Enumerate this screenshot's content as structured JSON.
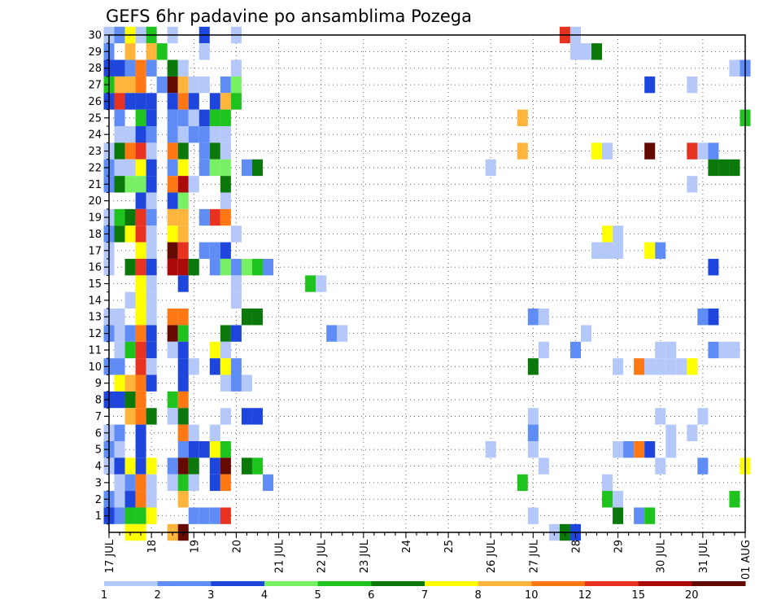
{
  "chart_data": {
    "type": "heatmap",
    "title": "GEFS 6hr padavine po ansamblima Pozega",
    "xlabel": "",
    "ylabel": "",
    "x_ticks": [
      "17 JUL",
      "18",
      "19",
      "20",
      "21 JUL",
      "22 JUL",
      "23 JUL",
      "24",
      "25",
      "26 JUL",
      "27 JUL",
      "28",
      "29",
      "30 JUL",
      "31 JUL",
      "01 AUG"
    ],
    "y_ticks": [
      1,
      2,
      3,
      4,
      5,
      6,
      7,
      8,
      9,
      10,
      11,
      12,
      13,
      14,
      15,
      16,
      17,
      18,
      19,
      20,
      21,
      22,
      23,
      24,
      25,
      26,
      27,
      28,
      29,
      30
    ],
    "y_range": [
      0,
      30
    ],
    "time_steps_per_day": 4,
    "n_time_steps": 61,
    "grid": "dotted",
    "legend": {
      "placement": "bottom",
      "labels": [
        "1",
        "2",
        "3",
        "4",
        "5",
        "6",
        "7",
        "8",
        "10",
        "12",
        "15",
        "20"
      ],
      "colors": [
        "#b4c8fa",
        "#5f8cf5",
        "#1e46dc",
        "#78f064",
        "#1ec31e",
        "#0a780a",
        "#ffff00",
        "#ffb43c",
        "#ff7814",
        "#e6321e",
        "#aa0a0a",
        "#640a00"
      ]
    },
    "cells_note": "each cell is [member_row, time_step, color_class_index]; color_class_index refers to legend.colors; time_step 0 = 17 JUL 00z",
    "cells": [
      [
        30,
        0,
        0
      ],
      [
        30,
        1,
        1
      ],
      [
        30,
        2,
        6
      ],
      [
        30,
        3,
        0
      ],
      [
        30,
        4,
        4
      ],
      [
        30,
        6,
        0
      ],
      [
        30,
        9,
        2
      ],
      [
        30,
        12,
        0
      ],
      [
        30,
        43,
        9
      ],
      [
        30,
        44,
        0
      ],
      [
        29,
        0,
        1
      ],
      [
        29,
        2,
        7
      ],
      [
        29,
        4,
        7
      ],
      [
        29,
        5,
        4
      ],
      [
        29,
        9,
        0
      ],
      [
        29,
        44,
        0
      ],
      [
        29,
        45,
        0
      ],
      [
        29,
        46,
        5
      ],
      [
        28,
        0,
        2
      ],
      [
        28,
        1,
        2
      ],
      [
        28,
        2,
        1
      ],
      [
        28,
        3,
        8
      ],
      [
        28,
        4,
        1
      ],
      [
        28,
        6,
        5
      ],
      [
        28,
        7,
        0
      ],
      [
        28,
        12,
        0
      ],
      [
        28,
        59,
        0
      ],
      [
        28,
        60,
        1
      ],
      [
        27,
        0,
        4
      ],
      [
        27,
        1,
        7
      ],
      [
        27,
        2,
        7
      ],
      [
        27,
        3,
        8
      ],
      [
        27,
        5,
        1
      ],
      [
        27,
        6,
        11
      ],
      [
        27,
        7,
        7
      ],
      [
        27,
        8,
        0
      ],
      [
        27,
        9,
        0
      ],
      [
        27,
        11,
        1
      ],
      [
        27,
        12,
        3
      ],
      [
        27,
        51,
        2
      ],
      [
        27,
        55,
        0
      ],
      [
        26,
        0,
        2
      ],
      [
        26,
        1,
        9
      ],
      [
        26,
        2,
        2
      ],
      [
        26,
        3,
        2
      ],
      [
        26,
        4,
        2
      ],
      [
        26,
        6,
        2
      ],
      [
        26,
        7,
        8
      ],
      [
        26,
        8,
        2
      ],
      [
        26,
        10,
        2
      ],
      [
        26,
        11,
        7
      ],
      [
        26,
        12,
        4
      ],
      [
        25,
        1,
        1
      ],
      [
        25,
        3,
        4
      ],
      [
        25,
        4,
        2
      ],
      [
        25,
        6,
        1
      ],
      [
        25,
        7,
        1
      ],
      [
        25,
        8,
        0
      ],
      [
        25,
        9,
        2
      ],
      [
        25,
        10,
        4
      ],
      [
        25,
        11,
        4
      ],
      [
        25,
        39,
        7
      ],
      [
        25,
        60,
        4
      ],
      [
        24,
        1,
        0
      ],
      [
        24,
        2,
        0
      ],
      [
        24,
        3,
        2
      ],
      [
        24,
        4,
        1
      ],
      [
        24,
        6,
        1
      ],
      [
        24,
        7,
        0
      ],
      [
        24,
        8,
        1
      ],
      [
        24,
        9,
        1
      ],
      [
        24,
        10,
        0
      ],
      [
        24,
        11,
        0
      ],
      [
        23,
        0,
        0
      ],
      [
        23,
        1,
        5
      ],
      [
        23,
        2,
        8
      ],
      [
        23,
        3,
        9
      ],
      [
        23,
        4,
        0
      ],
      [
        23,
        6,
        8
      ],
      [
        23,
        7,
        5
      ],
      [
        23,
        9,
        1
      ],
      [
        23,
        10,
        5
      ],
      [
        23,
        11,
        0
      ],
      [
        23,
        39,
        7
      ],
      [
        23,
        46,
        6
      ],
      [
        23,
        47,
        0
      ],
      [
        23,
        51,
        11
      ],
      [
        23,
        55,
        9
      ],
      [
        23,
        56,
        0
      ],
      [
        23,
        57,
        1
      ],
      [
        22,
        0,
        1
      ],
      [
        22,
        1,
        0
      ],
      [
        22,
        2,
        0
      ],
      [
        22,
        3,
        6
      ],
      [
        22,
        4,
        2
      ],
      [
        22,
        6,
        1
      ],
      [
        22,
        7,
        6
      ],
      [
        22,
        9,
        1
      ],
      [
        22,
        10,
        3
      ],
      [
        22,
        11,
        3
      ],
      [
        22,
        13,
        1
      ],
      [
        22,
        14,
        5
      ],
      [
        22,
        36,
        0
      ],
      [
        22,
        57,
        5
      ],
      [
        22,
        58,
        5
      ],
      [
        22,
        59,
        5
      ],
      [
        21,
        0,
        1
      ],
      [
        21,
        1,
        5
      ],
      [
        21,
        2,
        3
      ],
      [
        21,
        3,
        3
      ],
      [
        21,
        4,
        2
      ],
      [
        21,
        6,
        8
      ],
      [
        21,
        7,
        10
      ],
      [
        21,
        8,
        0
      ],
      [
        21,
        11,
        5
      ],
      [
        21,
        55,
        0
      ],
      [
        20,
        3,
        2
      ],
      [
        20,
        4,
        0
      ],
      [
        20,
        6,
        2
      ],
      [
        20,
        7,
        3
      ],
      [
        20,
        11,
        0
      ],
      [
        19,
        0,
        0
      ],
      [
        19,
        1,
        4
      ],
      [
        19,
        2,
        5
      ],
      [
        19,
        3,
        9
      ],
      [
        19,
        4,
        1
      ],
      [
        19,
        6,
        7
      ],
      [
        19,
        7,
        7
      ],
      [
        19,
        9,
        1
      ],
      [
        19,
        10,
        9
      ],
      [
        19,
        11,
        8
      ],
      [
        18,
        0,
        1
      ],
      [
        18,
        1,
        5
      ],
      [
        18,
        2,
        6
      ],
      [
        18,
        3,
        9
      ],
      [
        18,
        4,
        0
      ],
      [
        18,
        6,
        6
      ],
      [
        18,
        7,
        7
      ],
      [
        18,
        12,
        0
      ],
      [
        18,
        47,
        6
      ],
      [
        18,
        48,
        0
      ],
      [
        17,
        0,
        0
      ],
      [
        17,
        3,
        6
      ],
      [
        17,
        4,
        0
      ],
      [
        17,
        6,
        11
      ],
      [
        17,
        7,
        9
      ],
      [
        17,
        9,
        1
      ],
      [
        17,
        10,
        1
      ],
      [
        17,
        11,
        2
      ],
      [
        17,
        46,
        0
      ],
      [
        17,
        47,
        0
      ],
      [
        17,
        48,
        0
      ],
      [
        17,
        51,
        6
      ],
      [
        17,
        52,
        1
      ],
      [
        16,
        0,
        0
      ],
      [
        16,
        2,
        5
      ],
      [
        16,
        3,
        9
      ],
      [
        16,
        4,
        2
      ],
      [
        16,
        6,
        10
      ],
      [
        16,
        7,
        10
      ],
      [
        16,
        8,
        5
      ],
      [
        16,
        10,
        1
      ],
      [
        16,
        11,
        3
      ],
      [
        16,
        12,
        1
      ],
      [
        16,
        13,
        3
      ],
      [
        16,
        14,
        4
      ],
      [
        16,
        15,
        1
      ],
      [
        16,
        57,
        2
      ],
      [
        15,
        3,
        6
      ],
      [
        15,
        4,
        0
      ],
      [
        15,
        7,
        2
      ],
      [
        15,
        12,
        0
      ],
      [
        15,
        19,
        4
      ],
      [
        15,
        20,
        0
      ],
      [
        14,
        2,
        0
      ],
      [
        14,
        3,
        6
      ],
      [
        14,
        4,
        0
      ],
      [
        14,
        12,
        0
      ],
      [
        13,
        0,
        0
      ],
      [
        13,
        1,
        0
      ],
      [
        13,
        3,
        6
      ],
      [
        13,
        4,
        0
      ],
      [
        13,
        6,
        8
      ],
      [
        13,
        7,
        8
      ],
      [
        13,
        13,
        5
      ],
      [
        13,
        14,
        5
      ],
      [
        13,
        40,
        1
      ],
      [
        13,
        41,
        0
      ],
      [
        13,
        56,
        1
      ],
      [
        13,
        57,
        2
      ],
      [
        12,
        0,
        1
      ],
      [
        12,
        1,
        0
      ],
      [
        12,
        2,
        1
      ],
      [
        12,
        3,
        8
      ],
      [
        12,
        4,
        2
      ],
      [
        12,
        6,
        11
      ],
      [
        12,
        7,
        4
      ],
      [
        12,
        11,
        5
      ],
      [
        12,
        12,
        2
      ],
      [
        12,
        21,
        1
      ],
      [
        12,
        22,
        0
      ],
      [
        12,
        45,
        0
      ],
      [
        11,
        1,
        0
      ],
      [
        11,
        2,
        4
      ],
      [
        11,
        3,
        9
      ],
      [
        11,
        4,
        2
      ],
      [
        11,
        6,
        0
      ],
      [
        11,
        7,
        2
      ],
      [
        11,
        10,
        6
      ],
      [
        11,
        11,
        0
      ],
      [
        11,
        41,
        0
      ],
      [
        11,
        44,
        1
      ],
      [
        11,
        52,
        0
      ],
      [
        11,
        53,
        0
      ],
      [
        11,
        57,
        1
      ],
      [
        11,
        58,
        0
      ],
      [
        11,
        59,
        0
      ],
      [
        10,
        0,
        1
      ],
      [
        10,
        1,
        1
      ],
      [
        10,
        3,
        9
      ],
      [
        10,
        4,
        0
      ],
      [
        10,
        7,
        2
      ],
      [
        10,
        8,
        0
      ],
      [
        10,
        10,
        2
      ],
      [
        10,
        11,
        6
      ],
      [
        10,
        12,
        1
      ],
      [
        10,
        40,
        5
      ],
      [
        10,
        48,
        0
      ],
      [
        10,
        50,
        8
      ],
      [
        10,
        51,
        0
      ],
      [
        10,
        52,
        0
      ],
      [
        10,
        53,
        0
      ],
      [
        10,
        54,
        0
      ],
      [
        10,
        55,
        6
      ],
      [
        9,
        1,
        6
      ],
      [
        9,
        2,
        7
      ],
      [
        9,
        3,
        8
      ],
      [
        9,
        4,
        2
      ],
      [
        9,
        7,
        2
      ],
      [
        9,
        11,
        0
      ],
      [
        9,
        12,
        1
      ],
      [
        9,
        13,
        0
      ],
      [
        8,
        0,
        2
      ],
      [
        8,
        1,
        2
      ],
      [
        8,
        2,
        5
      ],
      [
        8,
        3,
        8
      ],
      [
        8,
        6,
        4
      ],
      [
        8,
        7,
        8
      ],
      [
        7,
        2,
        7
      ],
      [
        7,
        3,
        8
      ],
      [
        7,
        4,
        5
      ],
      [
        7,
        6,
        0
      ],
      [
        7,
        7,
        5
      ],
      [
        7,
        11,
        0
      ],
      [
        7,
        13,
        2
      ],
      [
        7,
        14,
        2
      ],
      [
        7,
        40,
        0
      ],
      [
        7,
        52,
        0
      ],
      [
        7,
        56,
        0
      ],
      [
        6,
        0,
        0
      ],
      [
        6,
        1,
        1
      ],
      [
        6,
        3,
        2
      ],
      [
        6,
        7,
        8
      ],
      [
        6,
        8,
        0
      ],
      [
        6,
        10,
        0
      ],
      [
        6,
        40,
        1
      ],
      [
        6,
        53,
        0
      ],
      [
        6,
        55,
        0
      ],
      [
        5,
        0,
        1
      ],
      [
        5,
        1,
        0
      ],
      [
        5,
        3,
        2
      ],
      [
        5,
        7,
        1
      ],
      [
        5,
        8,
        2
      ],
      [
        5,
        9,
        2
      ],
      [
        5,
        10,
        6
      ],
      [
        5,
        11,
        4
      ],
      [
        5,
        36,
        0
      ],
      [
        5,
        40,
        0
      ],
      [
        5,
        48,
        0
      ],
      [
        5,
        49,
        1
      ],
      [
        5,
        50,
        8
      ],
      [
        5,
        51,
        2
      ],
      [
        5,
        53,
        0
      ],
      [
        4,
        0,
        0
      ],
      [
        4,
        1,
        2
      ],
      [
        4,
        2,
        6
      ],
      [
        4,
        3,
        2
      ],
      [
        4,
        4,
        6
      ],
      [
        4,
        6,
        1
      ],
      [
        4,
        7,
        11
      ],
      [
        4,
        8,
        5
      ],
      [
        4,
        10,
        2
      ],
      [
        4,
        11,
        11
      ],
      [
        4,
        13,
        5
      ],
      [
        4,
        14,
        4
      ],
      [
        4,
        41,
        0
      ],
      [
        4,
        52,
        0
      ],
      [
        4,
        56,
        1
      ],
      [
        4,
        60,
        6
      ],
      [
        3,
        1,
        0
      ],
      [
        3,
        2,
        1
      ],
      [
        3,
        3,
        8
      ],
      [
        3,
        4,
        0
      ],
      [
        3,
        6,
        0
      ],
      [
        3,
        7,
        4
      ],
      [
        3,
        8,
        0
      ],
      [
        3,
        10,
        2
      ],
      [
        3,
        11,
        8
      ],
      [
        3,
        15,
        1
      ],
      [
        3,
        39,
        4
      ],
      [
        3,
        47,
        0
      ],
      [
        2,
        0,
        1
      ],
      [
        2,
        1,
        0
      ],
      [
        2,
        2,
        2
      ],
      [
        2,
        3,
        8
      ],
      [
        2,
        4,
        0
      ],
      [
        2,
        7,
        7
      ],
      [
        2,
        47,
        4
      ],
      [
        2,
        48,
        0
      ],
      [
        2,
        59,
        4
      ],
      [
        1,
        0,
        2
      ],
      [
        1,
        1,
        1
      ],
      [
        1,
        2,
        4
      ],
      [
        1,
        3,
        4
      ],
      [
        1,
        4,
        6
      ],
      [
        1,
        8,
        1
      ],
      [
        1,
        9,
        1
      ],
      [
        1,
        10,
        1
      ],
      [
        1,
        11,
        9
      ],
      [
        1,
        40,
        0
      ],
      [
        1,
        48,
        5
      ],
      [
        1,
        50,
        1
      ],
      [
        1,
        51,
        4
      ],
      [
        0,
        2,
        6
      ],
      [
        0,
        3,
        6
      ],
      [
        0,
        6,
        7
      ],
      [
        0,
        7,
        11
      ],
      [
        0,
        42,
        0
      ],
      [
        0,
        43,
        5
      ],
      [
        0,
        44,
        2
      ]
    ]
  }
}
